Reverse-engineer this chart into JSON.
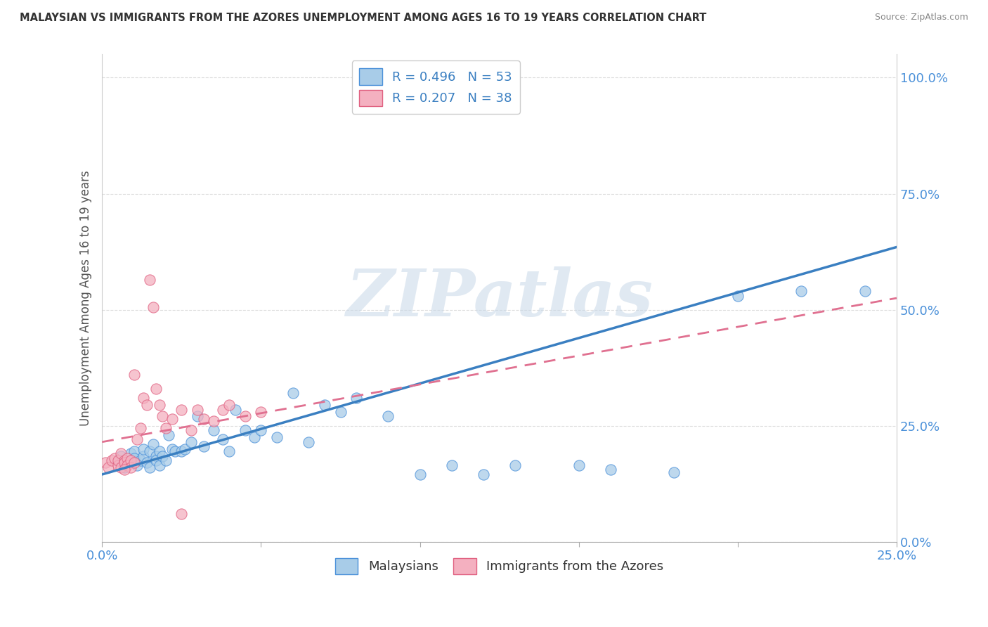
{
  "title": "MALAYSIAN VS IMMIGRANTS FROM THE AZORES UNEMPLOYMENT AMONG AGES 16 TO 19 YEARS CORRELATION CHART",
  "source": "Source: ZipAtlas.com",
  "ylabel": "Unemployment Among Ages 16 to 19 years",
  "watermark": "ZIPatlas",
  "xmin": 0.0,
  "xmax": 0.25,
  "ymin": 0.0,
  "ymax": 1.05,
  "blue_R": 0.496,
  "blue_N": 53,
  "pink_R": 0.207,
  "pink_N": 38,
  "blue_color": "#a8cce8",
  "pink_color": "#f4b0c0",
  "blue_edge_color": "#4a90d9",
  "pink_edge_color": "#e06080",
  "blue_line_color": "#3a7fc1",
  "pink_line_color": "#e07090",
  "tick_color": "#4a90d9",
  "ytick_labels": [
    "0.0%",
    "25.0%",
    "50.0%",
    "75.0%",
    "100.0%"
  ],
  "ytick_vals": [
    0.0,
    0.25,
    0.5,
    0.75,
    1.0
  ],
  "blue_trend_x0": 0.0,
  "blue_trend_x1": 0.25,
  "blue_trend_y0": 0.145,
  "blue_trend_y1": 0.635,
  "pink_trend_x0": 0.0,
  "pink_trend_x1": 0.25,
  "pink_trend_y0": 0.215,
  "pink_trend_y1": 0.525,
  "blue_scatter_x": [
    0.005,
    0.006,
    0.007,
    0.008,
    0.009,
    0.01,
    0.01,
    0.011,
    0.012,
    0.013,
    0.013,
    0.014,
    0.015,
    0.015,
    0.016,
    0.017,
    0.017,
    0.018,
    0.018,
    0.019,
    0.02,
    0.021,
    0.022,
    0.023,
    0.025,
    0.026,
    0.028,
    0.03,
    0.032,
    0.035,
    0.038,
    0.04,
    0.042,
    0.045,
    0.048,
    0.05,
    0.055,
    0.06,
    0.065,
    0.07,
    0.075,
    0.08,
    0.09,
    0.1,
    0.11,
    0.12,
    0.13,
    0.15,
    0.16,
    0.18,
    0.2,
    0.22,
    0.24
  ],
  "blue_scatter_y": [
    0.175,
    0.185,
    0.16,
    0.17,
    0.19,
    0.195,
    0.18,
    0.165,
    0.175,
    0.185,
    0.2,
    0.17,
    0.16,
    0.195,
    0.21,
    0.185,
    0.175,
    0.165,
    0.195,
    0.185,
    0.175,
    0.23,
    0.2,
    0.195,
    0.195,
    0.2,
    0.215,
    0.27,
    0.205,
    0.24,
    0.22,
    0.195,
    0.285,
    0.24,
    0.225,
    0.24,
    0.225,
    0.32,
    0.215,
    0.295,
    0.28,
    0.31,
    0.27,
    0.145,
    0.165,
    0.145,
    0.165,
    0.165,
    0.155,
    0.15,
    0.53,
    0.54,
    0.54
  ],
  "pink_scatter_x": [
    0.001,
    0.002,
    0.003,
    0.004,
    0.005,
    0.005,
    0.006,
    0.006,
    0.007,
    0.007,
    0.008,
    0.008,
    0.009,
    0.009,
    0.01,
    0.01,
    0.011,
    0.012,
    0.013,
    0.014,
    0.015,
    0.016,
    0.017,
    0.018,
    0.019,
    0.02,
    0.022,
    0.025,
    0.028,
    0.03,
    0.032,
    0.035,
    0.038,
    0.04,
    0.045,
    0.05,
    0.007,
    0.025
  ],
  "pink_scatter_y": [
    0.17,
    0.16,
    0.175,
    0.18,
    0.165,
    0.175,
    0.16,
    0.19,
    0.175,
    0.17,
    0.18,
    0.165,
    0.175,
    0.16,
    0.17,
    0.36,
    0.22,
    0.245,
    0.31,
    0.295,
    0.565,
    0.505,
    0.33,
    0.295,
    0.27,
    0.245,
    0.265,
    0.285,
    0.24,
    0.285,
    0.265,
    0.26,
    0.285,
    0.295,
    0.27,
    0.28,
    0.155,
    0.06
  ]
}
